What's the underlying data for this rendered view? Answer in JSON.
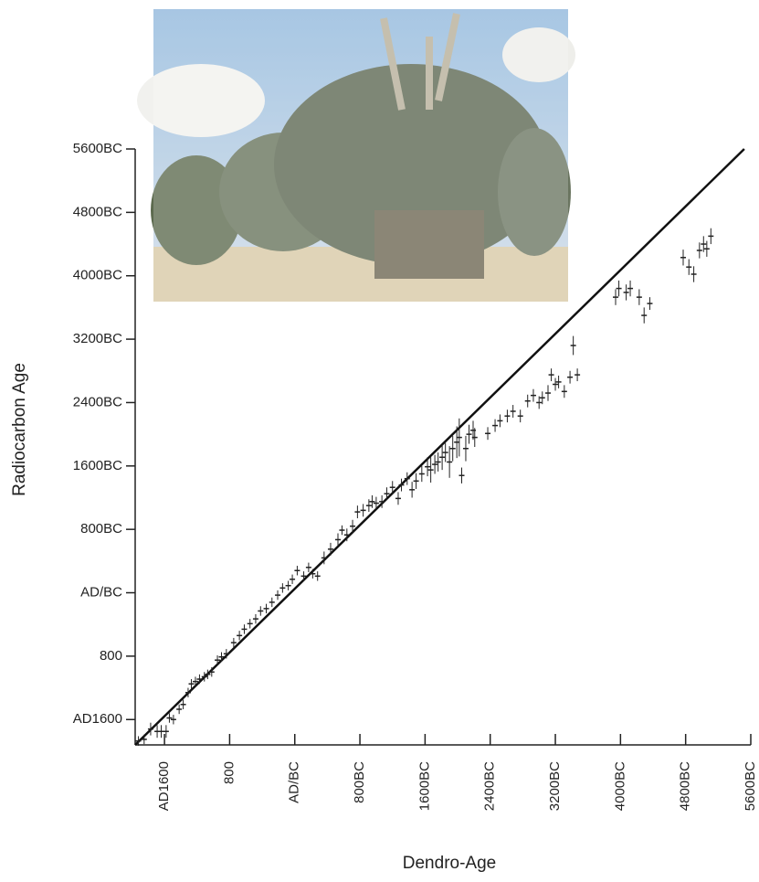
{
  "chart_data": {
    "type": "scatter",
    "x_label": "Dendro-Age",
    "y_label": "Radiocarbon Age",
    "xlim": [
      -1960,
      5600
    ],
    "ylim": [
      -1920,
      5600
    ],
    "xticks": [
      {
        "value": -1600,
        "label": "AD1600"
      },
      {
        "value": -800,
        "label": "800"
      },
      {
        "value": 0,
        "label": "AD/BC"
      },
      {
        "value": 800,
        "label": "800BC"
      },
      {
        "value": 1600,
        "label": "1600BC"
      },
      {
        "value": 2400,
        "label": "2400BC"
      },
      {
        "value": 3200,
        "label": "3200BC"
      },
      {
        "value": 4000,
        "label": "4000BC"
      },
      {
        "value": 4800,
        "label": "4800BC"
      },
      {
        "value": 5600,
        "label": "5600BC"
      }
    ],
    "yticks": [
      {
        "value": -1600,
        "label": "AD1600"
      },
      {
        "value": -800,
        "label": "800"
      },
      {
        "value": 0,
        "label": "AD/BC"
      },
      {
        "value": 800,
        "label": "800BC"
      },
      {
        "value": 1600,
        "label": "1600BC"
      },
      {
        "value": 2400,
        "label": "2400BC"
      },
      {
        "value": 3200,
        "label": "3200BC"
      },
      {
        "value": 4000,
        "label": "4000BC"
      },
      {
        "value": 4800,
        "label": "4800BC"
      },
      {
        "value": 5600,
        "label": "5600BC"
      }
    ],
    "color": "#222222",
    "reference_line": {
      "x": [
        -1960,
        5520
      ],
      "y": [
        -1920,
        5600
      ]
    },
    "x": [
      -1920,
      -1850,
      -1770,
      -1690,
      -1640,
      -1580,
      -1540,
      -1490,
      -1420,
      -1370,
      -1310,
      -1270,
      -1220,
      -1170,
      -1110,
      -1070,
      -1020,
      -950,
      -900,
      -840,
      -750,
      -680,
      -620,
      -550,
      -480,
      -420,
      -350,
      -280,
      -210,
      -150,
      -80,
      -30,
      30,
      110,
      170,
      220,
      280,
      360,
      440,
      530,
      580,
      640,
      710,
      770,
      840,
      910,
      950,
      1000,
      1070,
      1130,
      1200,
      1270,
      1310,
      1380,
      1440,
      1490,
      1560,
      1630,
      1670,
      1720,
      1760,
      1810,
      1850,
      1900,
      1940,
      1990,
      2020,
      2050,
      2100,
      2140,
      2190,
      2210,
      2370,
      2460,
      2520,
      2610,
      2680,
      2770,
      2860,
      2930,
      3000,
      3040,
      3110,
      3150,
      3200,
      3240,
      3310,
      3380,
      3420,
      3470,
      3940,
      3980,
      4070,
      4120,
      4230,
      4290,
      4360,
      4770,
      4840,
      4900,
      4970,
      5020,
      5060,
      5110
    ],
    "values": [
      -1870,
      -1850,
      -1720,
      -1750,
      -1750,
      -1750,
      -1580,
      -1600,
      -1470,
      -1410,
      -1260,
      -1150,
      -1120,
      -1090,
      -1060,
      -1030,
      -1000,
      -850,
      -810,
      -770,
      -630,
      -540,
      -460,
      -390,
      -330,
      -230,
      -200,
      -120,
      -30,
      60,
      90,
      170,
      280,
      210,
      320,
      240,
      210,
      440,
      550,
      670,
      790,
      730,
      840,
      1020,
      1040,
      1100,
      1150,
      1130,
      1150,
      1250,
      1330,
      1190,
      1360,
      1440,
      1300,
      1410,
      1500,
      1590,
      1550,
      1620,
      1650,
      1710,
      1770,
      1650,
      1820,
      1900,
      1960,
      1480,
      1820,
      2000,
      2050,
      1960,
      2010,
      2110,
      2170,
      2230,
      2290,
      2230,
      2420,
      2490,
      2400,
      2460,
      2520,
      2750,
      2630,
      2660,
      2540,
      2720,
      3120,
      2750,
      3730,
      3840,
      3790,
      3840,
      3730,
      3500,
      3650,
      4230,
      4110,
      4020,
      4320,
      4400,
      4340,
      4500
    ],
    "errors": [
      60,
      60,
      80,
      80,
      80,
      80,
      60,
      60,
      60,
      60,
      60,
      60,
      60,
      60,
      60,
      60,
      60,
      60,
      60,
      60,
      60,
      60,
      60,
      60,
      60,
      60,
      60,
      60,
      60,
      60,
      60,
      60,
      60,
      60,
      60,
      60,
      60,
      80,
      80,
      80,
      60,
      80,
      80,
      80,
      80,
      80,
      80,
      80,
      80,
      80,
      80,
      80,
      80,
      80,
      100,
      100,
      100,
      120,
      160,
      120,
      120,
      160,
      120,
      200,
      160,
      200,
      240,
      100,
      160,
      120,
      120,
      120,
      80,
      80,
      80,
      80,
      80,
      80,
      80,
      80,
      80,
      80,
      100,
      80,
      80,
      80,
      80,
      80,
      120,
      80,
      100,
      100,
      100,
      100,
      100,
      100,
      80,
      100,
      100,
      100,
      100,
      100,
      100,
      100
    ]
  }
}
